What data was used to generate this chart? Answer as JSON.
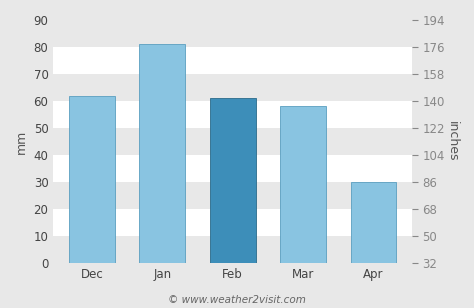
{
  "categories": [
    "Dec",
    "Jan",
    "Feb",
    "Mar",
    "Apr"
  ],
  "values": [
    62,
    81,
    61,
    58,
    30
  ],
  "bar_colors": [
    "#89c4e1",
    "#89c4e1",
    "#3d8eb9",
    "#89c4e1",
    "#89c4e1"
  ],
  "bar_edge_colors": [
    "#5a9fc0",
    "#5a9fc0",
    "#2a6a8a",
    "#5a9fc0",
    "#5a9fc0"
  ],
  "ylim_mm": [
    0,
    90
  ],
  "yticks_mm": [
    0,
    10,
    20,
    30,
    40,
    50,
    60,
    70,
    80,
    90
  ],
  "yticks_inches": [
    32,
    50,
    68,
    86,
    104,
    122,
    140,
    158,
    176,
    194
  ],
  "ylabel_left": "mm",
  "ylabel_right": "inches",
  "background_color": "#e8e8e8",
  "plot_bg_color": "#ffffff",
  "band_colors": [
    "#e8e8e8",
    "#ffffff"
  ],
  "footer_text": "© www.weather2visit.com",
  "footer_fontsize": 7.5,
  "axis_fontsize": 9,
  "tick_fontsize": 8.5,
  "bar_width": 0.65
}
